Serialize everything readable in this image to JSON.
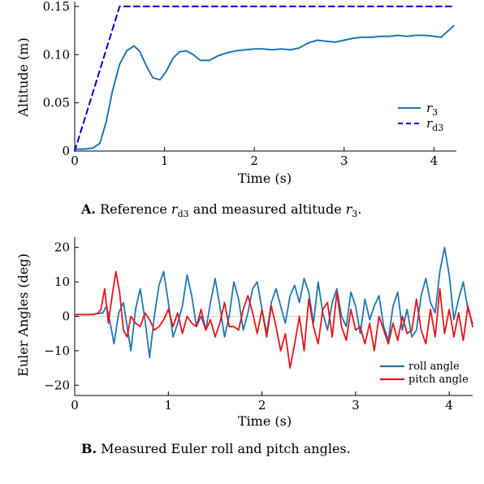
{
  "chart_data": [
    {
      "type": "line",
      "ylabel": "Altitude (m)",
      "xlabel": "Time (s)",
      "xlim": [
        0,
        4.25
      ],
      "ylim": [
        0,
        0.155
      ],
      "xticks": [
        "0",
        "1",
        "2",
        "3",
        "4"
      ],
      "yticks": [
        "0",
        "0.05",
        "0.10",
        "0.15"
      ],
      "legend_position": "bottom-right",
      "caption": {
        "label": "A.",
        "text_before": " Reference ",
        "math1_main": "r",
        "math1_sub": "d3",
        "text_middle": " and measured altitude ",
        "math2_main": "r",
        "math2_sub": "3",
        "text_after": "."
      },
      "series": [
        {
          "name_main": "r",
          "name_sub": "3",
          "color": "#1f77b4",
          "style": "solid",
          "x": [
            0,
            0.1,
            0.2,
            0.28,
            0.35,
            0.42,
            0.5,
            0.58,
            0.66,
            0.72,
            0.8,
            0.87,
            0.95,
            1.02,
            1.1,
            1.17,
            1.24,
            1.32,
            1.4,
            1.5,
            1.6,
            1.7,
            1.8,
            1.9,
            2.0,
            2.1,
            2.2,
            2.3,
            2.4,
            2.5,
            2.6,
            2.7,
            2.8,
            2.9,
            3.0,
            3.1,
            3.2,
            3.3,
            3.4,
            3.5,
            3.6,
            3.7,
            3.8,
            3.9,
            4.0,
            4.08,
            4.15,
            4.22
          ],
          "y": [
            0.002,
            0.002,
            0.003,
            0.008,
            0.03,
            0.062,
            0.09,
            0.104,
            0.109,
            0.104,
            0.088,
            0.076,
            0.074,
            0.083,
            0.097,
            0.103,
            0.104,
            0.1,
            0.094,
            0.094,
            0.099,
            0.102,
            0.104,
            0.105,
            0.106,
            0.106,
            0.105,
            0.106,
            0.105,
            0.107,
            0.112,
            0.115,
            0.114,
            0.113,
            0.115,
            0.117,
            0.118,
            0.118,
            0.119,
            0.119,
            0.12,
            0.119,
            0.12,
            0.12,
            0.119,
            0.118,
            0.124,
            0.13
          ]
        },
        {
          "name_main": "r",
          "name_sub": "d3",
          "color": "#0000dd",
          "style": "dashed",
          "x": [
            0,
            0.5,
            4.22
          ],
          "y": [
            0,
            0.15,
            0.15
          ]
        }
      ]
    },
    {
      "type": "line",
      "ylabel": "Euler Angles (deg)",
      "xlabel": "Time (s)",
      "xlim": [
        0,
        4.25
      ],
      "ylim": [
        -23,
        23
      ],
      "xticks": [
        "0",
        "1",
        "2",
        "3",
        "4"
      ],
      "yticks": [
        "−20",
        "−10",
        "0",
        "10",
        "20"
      ],
      "legend_position": "bottom-right",
      "caption": {
        "label": "B.",
        "text": " Measured Euler roll and pitch angles."
      },
      "series": [
        {
          "name": "roll angle",
          "color": "#1f77b4",
          "x": [
            0,
            0.1,
            0.2,
            0.3,
            0.34,
            0.38,
            0.42,
            0.47,
            0.52,
            0.56,
            0.6,
            0.65,
            0.7,
            0.75,
            0.8,
            0.85,
            0.9,
            0.95,
            1.0,
            1.05,
            1.1,
            1.15,
            1.2,
            1.25,
            1.3,
            1.35,
            1.4,
            1.45,
            1.5,
            1.55,
            1.6,
            1.65,
            1.7,
            1.75,
            1.8,
            1.85,
            1.9,
            1.95,
            2.0,
            2.05,
            2.1,
            2.15,
            2.2,
            2.25,
            2.3,
            2.35,
            2.4,
            2.45,
            2.5,
            2.55,
            2.6,
            2.65,
            2.7,
            2.75,
            2.8,
            2.85,
            2.9,
            2.95,
            3.0,
            3.05,
            3.1,
            3.15,
            3.2,
            3.25,
            3.3,
            3.35,
            3.4,
            3.45,
            3.5,
            3.55,
            3.6,
            3.65,
            3.7,
            3.75,
            3.8,
            3.85,
            3.9,
            3.95,
            4.0,
            4.05,
            4.1,
            4.15,
            4.2,
            4.25
          ],
          "y": [
            0.5,
            0.5,
            0.6,
            1,
            3,
            -2,
            -8,
            1,
            4,
            -3,
            -10,
            2,
            8,
            -1,
            -12,
            0,
            9,
            13,
            4,
            -6,
            -2,
            3,
            12,
            6,
            -3,
            0,
            -4,
            4,
            11,
            3,
            -6,
            0,
            10,
            5,
            -4,
            1,
            8,
            10,
            2,
            -5,
            4,
            8,
            3,
            -2,
            6,
            9,
            4,
            11,
            7,
            -2,
            10,
            1,
            -4,
            4,
            8,
            0,
            -3,
            7,
            3,
            -5,
            5,
            -1,
            3,
            6,
            -3,
            -7,
            3,
            7,
            -4,
            2,
            -6,
            -4,
            6,
            11,
            4,
            1,
            13,
            20,
            12,
            -1,
            5,
            10,
            2,
            -2
          ]
        },
        {
          "name": "pitch angle",
          "color": "#e8141b",
          "x": [
            0,
            0.1,
            0.2,
            0.25,
            0.28,
            0.32,
            0.36,
            0.4,
            0.44,
            0.48,
            0.52,
            0.56,
            0.6,
            0.65,
            0.7,
            0.75,
            0.8,
            0.85,
            0.9,
            0.95,
            1.0,
            1.05,
            1.1,
            1.15,
            1.2,
            1.25,
            1.3,
            1.35,
            1.4,
            1.45,
            1.5,
            1.55,
            1.6,
            1.65,
            1.7,
            1.75,
            1.8,
            1.85,
            1.9,
            1.95,
            2.0,
            2.05,
            2.1,
            2.15,
            2.2,
            2.25,
            2.3,
            2.35,
            2.4,
            2.45,
            2.5,
            2.55,
            2.6,
            2.65,
            2.7,
            2.75,
            2.8,
            2.85,
            2.9,
            2.95,
            3.0,
            3.05,
            3.1,
            3.15,
            3.2,
            3.25,
            3.3,
            3.35,
            3.4,
            3.45,
            3.5,
            3.55,
            3.6,
            3.65,
            3.7,
            3.75,
            3.8,
            3.85,
            3.9,
            3.95,
            4.0,
            4.05,
            4.1,
            4.15,
            4.2,
            4.25
          ],
          "y": [
            0.5,
            0.5,
            0.5,
            1,
            2,
            8,
            -2,
            6,
            13,
            7,
            -4,
            -6,
            0,
            -2,
            -3,
            1,
            -1,
            -4,
            -3,
            -1,
            2,
            -3,
            1,
            -5,
            0,
            -2,
            -3,
            2,
            -4,
            -1,
            -6,
            -2,
            4,
            -3,
            -3,
            -4,
            2,
            6,
            1,
            -5,
            2,
            -6,
            3,
            -3,
            -10,
            -5,
            -15,
            -8,
            0,
            -10,
            5,
            -3,
            -8,
            2,
            4,
            -6,
            7,
            -3,
            -7,
            2,
            -4,
            -3,
            -8,
            -2,
            -10,
            0,
            -4,
            -8,
            -2,
            -7,
            0,
            -5,
            -4,
            5,
            -4,
            -8,
            2,
            -6,
            8,
            -5,
            2,
            -6,
            1,
            -7,
            3,
            -3
          ]
        }
      ]
    }
  ]
}
